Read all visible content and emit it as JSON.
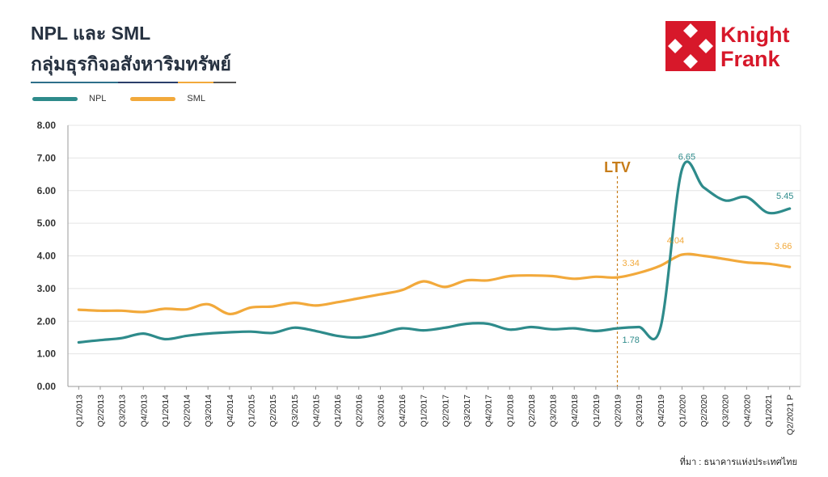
{
  "header": {
    "title_line1": "NPL และ SML",
    "title_line2": "กลุ่มธุรกิจอสังหาริมทรัพย์"
  },
  "brand": {
    "name_line1": "Knight",
    "name_line2": "Frank",
    "color": "#d7182a"
  },
  "colors": {
    "npl": "#2e8b8b",
    "sml": "#f2a93b",
    "ltv": "#c77d1a",
    "underline": [
      "#2e6f8a",
      "#2a3e6a",
      "#f2a93b",
      "#555555"
    ]
  },
  "source_note": "ที่มา : ธนาคารแห่งประเทศไทย",
  "chart_data": {
    "type": "line",
    "categories": [
      "Q1/2013",
      "Q2/2013",
      "Q3/2013",
      "Q4/2013",
      "Q1/2014",
      "Q2/2014",
      "Q3/2014",
      "Q4/2014",
      "Q1/2015",
      "Q2/2015",
      "Q3/2015",
      "Q4/2015",
      "Q1/2016",
      "Q2/2016",
      "Q3/2016",
      "Q4/2016",
      "Q1/2017",
      "Q2/2017",
      "Q3/2017",
      "Q4/2017",
      "Q1/2018",
      "Q2/2018",
      "Q3/2018",
      "Q4/2018",
      "Q1/2019",
      "Q2/2019",
      "Q3/2019",
      "Q4/2019",
      "Q1/2020",
      "Q2/2020",
      "Q3/2020",
      "Q4/2020",
      "Q1/2021",
      "Q2/2021 P"
    ],
    "series": [
      {
        "name": "NPL",
        "values": [
          1.35,
          1.42,
          1.48,
          1.62,
          1.45,
          1.55,
          1.62,
          1.66,
          1.68,
          1.64,
          1.8,
          1.7,
          1.55,
          1.5,
          1.62,
          1.78,
          1.72,
          1.8,
          1.92,
          1.92,
          1.74,
          1.82,
          1.75,
          1.78,
          1.7,
          1.78,
          1.82,
          1.8,
          6.65,
          6.1,
          5.7,
          5.8,
          5.32,
          5.45
        ]
      },
      {
        "name": "SML",
        "values": [
          2.35,
          2.32,
          2.32,
          2.28,
          2.38,
          2.36,
          2.52,
          2.22,
          2.42,
          2.45,
          2.56,
          2.48,
          2.58,
          2.7,
          2.82,
          2.95,
          3.22,
          3.05,
          3.25,
          3.25,
          3.38,
          3.4,
          3.38,
          3.3,
          3.36,
          3.34,
          3.48,
          3.7,
          4.04,
          4.0,
          3.9,
          3.8,
          3.76,
          3.66
        ]
      }
    ],
    "ylim": [
      0,
      8
    ],
    "yticks": [
      "0.00",
      "1.00",
      "2.00",
      "3.00",
      "4.00",
      "5.00",
      "6.00",
      "7.00",
      "8.00"
    ],
    "grid": true,
    "legend_position": "top-left",
    "annotations": [
      {
        "series": "NPL",
        "category": "Q2/2019",
        "label": "1.78"
      },
      {
        "series": "NPL",
        "category": "Q1/2020",
        "label": "6.65"
      },
      {
        "series": "NPL",
        "category": "Q2/2021 P",
        "label": "5.45"
      },
      {
        "series": "SML",
        "category": "Q2/2019",
        "label": "3.34"
      },
      {
        "series": "SML",
        "category": "Q1/2020",
        "label": "4.04"
      },
      {
        "series": "SML",
        "category": "Q2/2021 P",
        "label": "3.66"
      }
    ],
    "marker": {
      "category": "Q2/2019",
      "label": "LTV"
    }
  }
}
